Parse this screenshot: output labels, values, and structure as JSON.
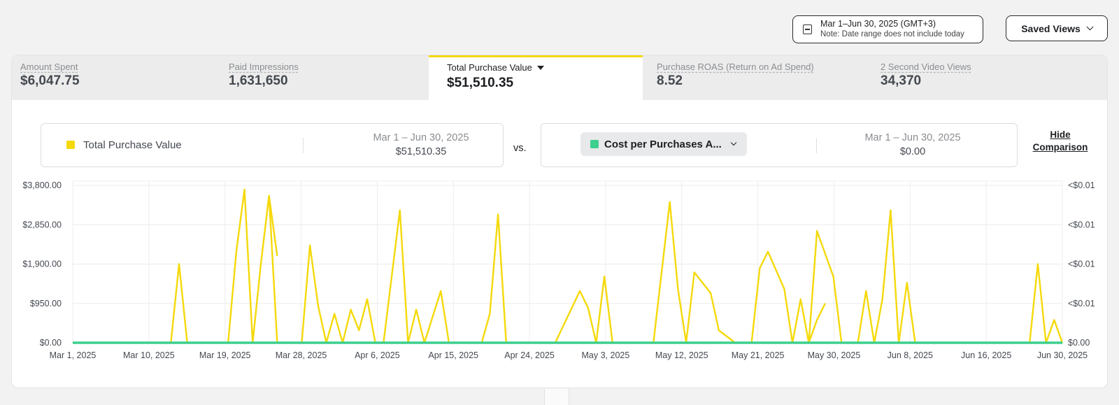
{
  "date_range": {
    "main": "Mar 1–Jun 30, 2025 (GMT+3)",
    "note": "Note: Date range does not include today"
  },
  "saved_views": "Saved Views",
  "metrics": [
    {
      "label": "Amount Spent",
      "value": "$6,047.75"
    },
    {
      "label": "Paid Impressions",
      "value": "1,631,650"
    },
    {
      "label": "Total Purchase Value",
      "value": "$51,510.35",
      "active": true
    },
    {
      "label": "Purchase ROAS (Return on Ad Spend)",
      "value": "8.52"
    },
    {
      "label": "2 Second Video Views",
      "value": "34,370"
    }
  ],
  "comparison": {
    "left": {
      "label": "Total Purchase Value",
      "date": "Mar 1 – Jun 30, 2025",
      "value": "$51,510.35",
      "color": "#f5d90a"
    },
    "vs": "vs.",
    "right": {
      "label": "Cost per Purchases A...",
      "date": "Mar 1 – Jun 30, 2025",
      "value": "$0.00",
      "color": "#3ccf8e"
    },
    "hide_label_1": "Hide",
    "hide_label_2": "Comparison"
  },
  "chart_data": {
    "type": "line",
    "x_start": "2025-03-01",
    "x_end": "2025-06-30",
    "x_tick_labels": [
      "Mar 1, 2025",
      "Mar 10, 2025",
      "Mar 19, 2025",
      "Mar 28, 2025",
      "Apr 6, 2025",
      "Apr 15, 2025",
      "Apr 24, 2025",
      "May 3, 2025",
      "May 12, 2025",
      "May 21, 2025",
      "May 30, 2025",
      "Jun 8, 2025",
      "Jun 16, 2025",
      "Jun 30, 2025"
    ],
    "y_ticks": [
      0,
      950,
      1900,
      2850,
      3800
    ],
    "y_tick_labels": [
      "$0.00",
      "$950.00",
      "$1,900.00",
      "$2,850.00",
      "$3,800.00"
    ],
    "y_right_tick_labels": [
      "$0.00",
      "<$0.01",
      "<$0.01",
      "<$0.01",
      "<$0.01"
    ],
    "ylim": [
      0,
      3800
    ],
    "grid": true,
    "series": [
      {
        "name": "Total Purchase Value",
        "color": "#f5d90a",
        "segments": [
          [
            [
              "2025-03-13",
              0
            ],
            [
              "2025-03-14",
              1900
            ],
            [
              "2025-03-15",
              0
            ]
          ],
          [
            [
              "2025-03-20",
              0
            ],
            [
              "2025-03-21",
              2200
            ],
            [
              "2025-03-22",
              3700
            ],
            [
              "2025-03-23",
              0
            ],
            [
              "2025-03-24",
              1900
            ],
            [
              "2025-03-25",
              3550
            ],
            [
              "2025-03-26",
              0
            ]
          ],
          [
            [
              "2025-03-25",
              3550
            ],
            [
              "2025-03-26",
              2100
            ]
          ],
          [
            [
              "2025-03-29",
              0
            ],
            [
              "2025-03-30",
              2350
            ],
            [
              "2025-03-31",
              900
            ],
            [
              "2025-04-01",
              0
            ],
            [
              "2025-04-02",
              700
            ],
            [
              "2025-04-03",
              0
            ],
            [
              "2025-04-04",
              800
            ],
            [
              "2025-04-05",
              300
            ],
            [
              "2025-04-06",
              1050
            ],
            [
              "2025-04-07",
              0
            ]
          ],
          [
            [
              "2025-04-08",
              0
            ],
            [
              "2025-04-10",
              3200
            ],
            [
              "2025-04-11",
              0
            ],
            [
              "2025-04-12",
              800
            ],
            [
              "2025-04-13",
              0
            ],
            [
              "2025-04-15",
              1250
            ],
            [
              "2025-04-16",
              0
            ]
          ],
          [
            [
              "2025-04-20",
              0
            ],
            [
              "2025-04-21",
              700
            ],
            [
              "2025-04-22",
              3100
            ],
            [
              "2025-04-23",
              0
            ]
          ],
          [
            [
              "2025-04-29",
              0
            ],
            [
              "2025-05-02",
              1250
            ],
            [
              "2025-05-03",
              850
            ],
            [
              "2025-05-04",
              0
            ],
            [
              "2025-05-05",
              1600
            ],
            [
              "2025-05-06",
              0
            ]
          ],
          [
            [
              "2025-05-11",
              0
            ],
            [
              "2025-05-13",
              3400
            ],
            [
              "2025-05-14",
              1300
            ],
            [
              "2025-05-15",
              0
            ],
            [
              "2025-05-16",
              1700
            ],
            [
              "2025-05-18",
              1200
            ],
            [
              "2025-05-19",
              300
            ],
            [
              "2025-05-21",
              0
            ]
          ],
          [
            [
              "2025-05-23",
              0
            ],
            [
              "2025-05-24",
              1800
            ],
            [
              "2025-05-25",
              2200
            ],
            [
              "2025-05-27",
              1300
            ],
            [
              "2025-05-28",
              0
            ],
            [
              "2025-05-29",
              1050
            ],
            [
              "2025-05-30",
              0
            ],
            [
              "2025-05-31",
              550
            ],
            [
              "2025-06-01",
              950
            ]
          ],
          [
            [
              "2025-05-30",
              0
            ],
            [
              "2025-05-31",
              2700
            ],
            [
              "2025-06-02",
              1600
            ],
            [
              "2025-06-03",
              0
            ]
          ],
          [
            [
              "2025-06-05",
              0
            ],
            [
              "2025-06-06",
              1250
            ],
            [
              "2025-06-07",
              0
            ],
            [
              "2025-06-08",
              1050
            ],
            [
              "2025-06-09",
              3200
            ],
            [
              "2025-06-10",
              0
            ],
            [
              "2025-06-11",
              1450
            ],
            [
              "2025-06-12",
              0
            ]
          ],
          [
            [
              "2025-06-26",
              0
            ],
            [
              "2025-06-27",
              1900
            ],
            [
              "2025-06-28",
              0
            ],
            [
              "2025-06-29",
              550
            ],
            [
              "2025-06-30",
              0
            ]
          ]
        ]
      },
      {
        "name": "Cost per Purchases A...",
        "color": "#3ccf8e",
        "constant": 0
      }
    ]
  }
}
